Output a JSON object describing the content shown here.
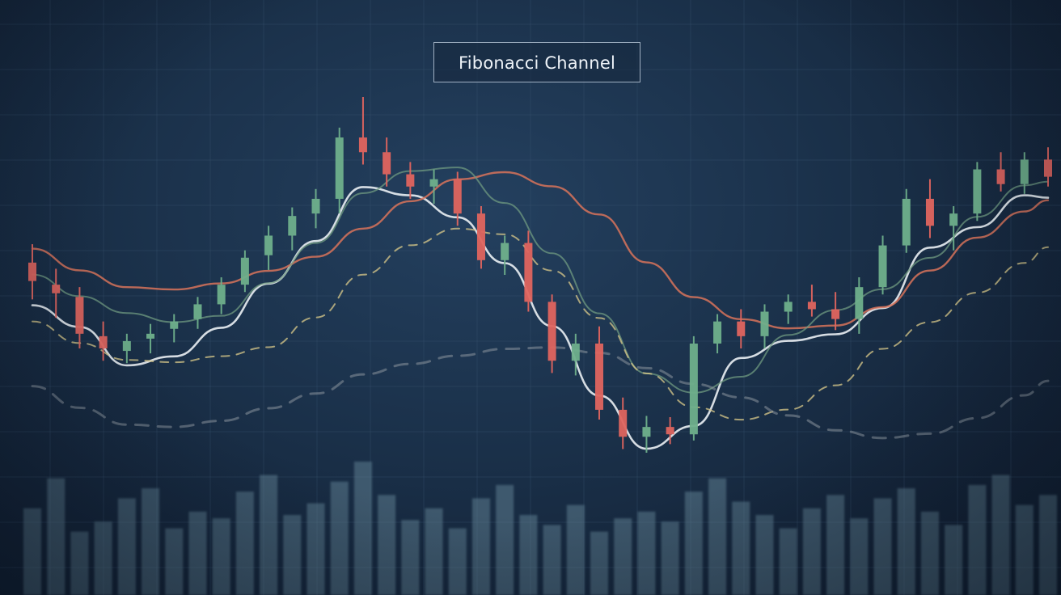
{
  "chart_data": {
    "type": "candlestick",
    "title": "Fibonacci Channel",
    "xlabel": "",
    "ylabel": "",
    "grid": true,
    "legend": "none",
    "colors": {
      "up": "#6fb08c",
      "down": "#e0655f",
      "ma_white": "#e6ebf0",
      "ma_orange": "#d8735b",
      "ma_green": "#6f9a80",
      "dashed_yellow": "#d9c98a",
      "dashed_gray": "#8a939c",
      "volume": "#6d8fa0"
    },
    "candles": [
      {
        "o": 410,
        "h": 425,
        "l": 380,
        "c": 395
      },
      {
        "o": 392,
        "h": 405,
        "l": 365,
        "c": 385
      },
      {
        "o": 382,
        "h": 390,
        "l": 340,
        "c": 352
      },
      {
        "o": 350,
        "h": 362,
        "l": 330,
        "c": 340
      },
      {
        "o": 338,
        "h": 352,
        "l": 328,
        "c": 346
      },
      {
        "o": 348,
        "h": 360,
        "l": 336,
        "c": 352
      },
      {
        "o": 356,
        "h": 368,
        "l": 345,
        "c": 362
      },
      {
        "o": 364,
        "h": 382,
        "l": 356,
        "c": 376
      },
      {
        "o": 376,
        "h": 398,
        "l": 368,
        "c": 392
      },
      {
        "o": 392,
        "h": 420,
        "l": 386,
        "c": 414
      },
      {
        "o": 416,
        "h": 440,
        "l": 404,
        "c": 432
      },
      {
        "o": 432,
        "h": 455,
        "l": 420,
        "c": 448
      },
      {
        "o": 450,
        "h": 470,
        "l": 438,
        "c": 462
      },
      {
        "o": 462,
        "h": 520,
        "l": 450,
        "c": 512
      },
      {
        "o": 512,
        "h": 545,
        "l": 490,
        "c": 500
      },
      {
        "o": 500,
        "h": 512,
        "l": 472,
        "c": 482
      },
      {
        "o": 482,
        "h": 492,
        "l": 462,
        "c": 472
      },
      {
        "o": 472,
        "h": 486,
        "l": 458,
        "c": 478
      },
      {
        "o": 478,
        "h": 484,
        "l": 440,
        "c": 450
      },
      {
        "o": 450,
        "h": 456,
        "l": 405,
        "c": 412
      },
      {
        "o": 412,
        "h": 432,
        "l": 400,
        "c": 426
      },
      {
        "o": 426,
        "h": 436,
        "l": 370,
        "c": 378
      },
      {
        "o": 378,
        "h": 384,
        "l": 320,
        "c": 330
      },
      {
        "o": 330,
        "h": 352,
        "l": 318,
        "c": 344
      },
      {
        "o": 344,
        "h": 358,
        "l": 282,
        "c": 290
      },
      {
        "o": 290,
        "h": 300,
        "l": 258,
        "c": 268
      },
      {
        "o": 268,
        "h": 285,
        "l": 255,
        "c": 276
      },
      {
        "o": 276,
        "h": 284,
        "l": 262,
        "c": 270
      },
      {
        "o": 270,
        "h": 350,
        "l": 265,
        "c": 344
      },
      {
        "o": 344,
        "h": 368,
        "l": 336,
        "c": 362
      },
      {
        "o": 362,
        "h": 372,
        "l": 340,
        "c": 350
      },
      {
        "o": 350,
        "h": 376,
        "l": 340,
        "c": 370
      },
      {
        "o": 370,
        "h": 384,
        "l": 360,
        "c": 378
      },
      {
        "o": 378,
        "h": 392,
        "l": 366,
        "c": 372
      },
      {
        "o": 372,
        "h": 386,
        "l": 355,
        "c": 364
      },
      {
        "o": 364,
        "h": 398,
        "l": 352,
        "c": 390
      },
      {
        "o": 390,
        "h": 432,
        "l": 384,
        "c": 424
      },
      {
        "o": 424,
        "h": 470,
        "l": 418,
        "c": 462
      },
      {
        "o": 462,
        "h": 478,
        "l": 430,
        "c": 440
      },
      {
        "o": 440,
        "h": 456,
        "l": 420,
        "c": 450
      },
      {
        "o": 450,
        "h": 492,
        "l": 444,
        "c": 486
      },
      {
        "o": 486,
        "h": 500,
        "l": 468,
        "c": 474
      },
      {
        "o": 474,
        "h": 500,
        "l": 466,
        "c": 494
      },
      {
        "o": 494,
        "h": 504,
        "l": 472,
        "c": 480
      }
    ],
    "volume": [
      52,
      70,
      38,
      44,
      58,
      64,
      40,
      50,
      46,
      62,
      72,
      48,
      55,
      68,
      80,
      60,
      45,
      52,
      40,
      58,
      66,
      48,
      42,
      54,
      38,
      46,
      50,
      44,
      62,
      70,
      56,
      48,
      40,
      52,
      60,
      46,
      58,
      64,
      50,
      42,
      66,
      72,
      54,
      60
    ],
    "overlays": [
      {
        "name": "",
        "style": "solid",
        "color": "ma_white"
      },
      {
        "name": "",
        "style": "solid",
        "color": "ma_orange"
      },
      {
        "name": "",
        "style": "solid",
        "color": "ma_green"
      },
      {
        "name": "",
        "style": "dashed",
        "color": "dashed_yellow"
      },
      {
        "name": "",
        "style": "dashed",
        "color": "dashed_gray"
      }
    ]
  }
}
